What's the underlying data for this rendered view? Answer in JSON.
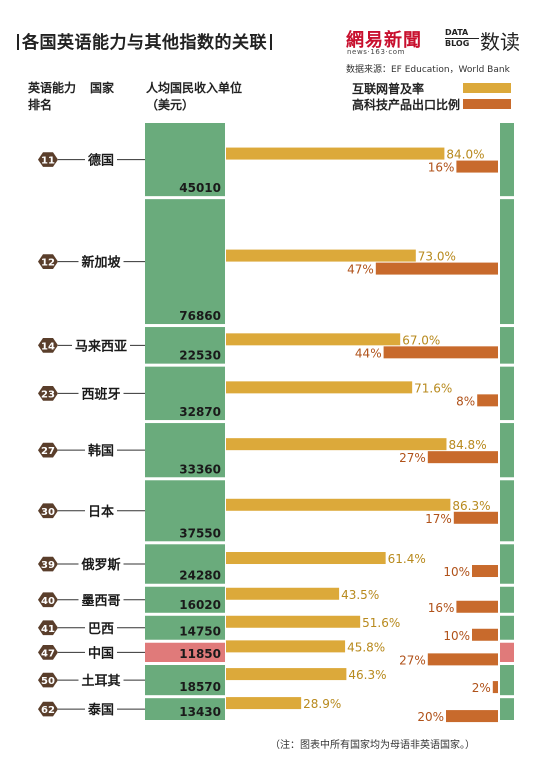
{
  "title": {
    "text": "各国英语能力与其他指数的关联",
    "logo_netease": "網易新聞",
    "logo_netease_sub": "news·163·com",
    "logo_datablog_1": "DATA",
    "logo_datablog_2": "BLOG",
    "logo_read": "数读",
    "source": "数据来源：EF Education，World Bank"
  },
  "headers": {
    "rank": "英语能力排名",
    "country": "国家",
    "income": "人均国民收入单位（美元）"
  },
  "legend": {
    "internet": "互联网普及率",
    "hightech": "高科技产品出口比例"
  },
  "colors": {
    "income": "#6aab7c",
    "income_highlight": "#e07a7a",
    "internet": "#dca93a",
    "hightech": "#c86a2c",
    "internet_text": "#b88a1e",
    "hightech_text": "#b0521a",
    "rank_badge": "#5a3e2b"
  },
  "chart_data": {
    "type": "bar",
    "categories": [
      "德国",
      "新加坡",
      "马来西亚",
      "西班牙",
      "韩国",
      "日本",
      "俄罗斯",
      "墨西哥",
      "巴西",
      "中国",
      "土耳其",
      "泰国"
    ],
    "ranks": [
      11,
      12,
      14,
      23,
      27,
      30,
      39,
      40,
      41,
      47,
      50,
      62
    ],
    "series": [
      {
        "name": "人均国民收入单位（美元）",
        "values": [
          45010,
          76860,
          22530,
          32870,
          33360,
          37550,
          24280,
          16020,
          14750,
          11850,
          18570,
          13430
        ]
      },
      {
        "name": "互联网普及率",
        "values": [
          84.0,
          73.0,
          67.0,
          71.6,
          84.8,
          86.3,
          61.4,
          43.5,
          51.6,
          45.8,
          46.3,
          28.9
        ]
      },
      {
        "name": "高科技产品出口比例",
        "values": [
          16,
          47,
          44,
          8,
          27,
          17,
          10,
          16,
          10,
          27,
          2,
          20
        ]
      }
    ],
    "internet_labels": [
      "84.0%",
      "73.0%",
      "67.0%",
      "71.6%",
      "84.8%",
      "86.3%",
      "61.4%",
      "43.5%",
      "51.6%",
      "45.8%",
      "46.3%",
      "28.9%"
    ],
    "hightech_labels": [
      "16%",
      "47%",
      "44%",
      "8%",
      "27%",
      "17%",
      "10%",
      "16%",
      "10%",
      "27%",
      "2%",
      "20%"
    ],
    "highlight": "中国"
  },
  "footnote": "（注：图表中所有国家均为母语非英语国家。）"
}
